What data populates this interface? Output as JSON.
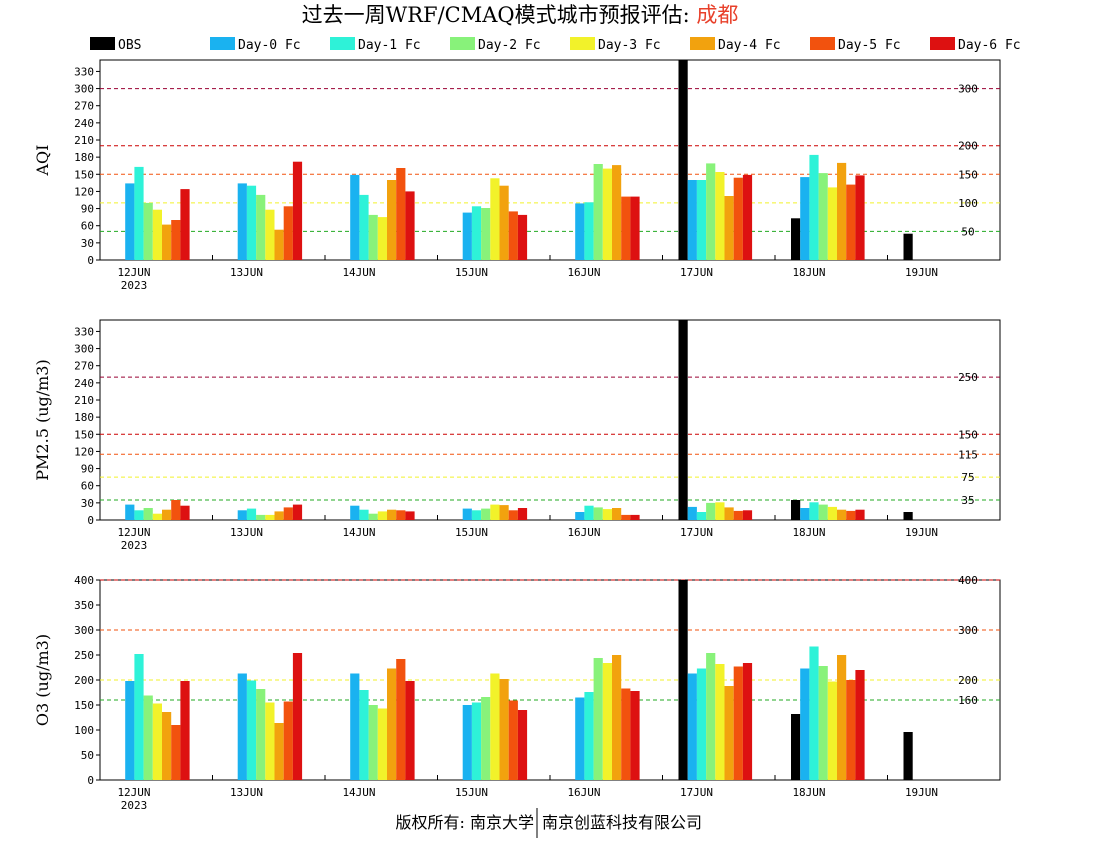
{
  "title": {
    "main": "过去一周WRF/CMAQ模式城市预报评估: ",
    "city": "成都",
    "city_color": "#e8402a"
  },
  "footer": {
    "left": "版权所有: 南京大学",
    "right": "南京创蓝科技有限公司"
  },
  "legend": [
    {
      "label": "OBS",
      "color": "#000000"
    },
    {
      "label": "Day-0 Fc",
      "color": "#1ab2f0"
    },
    {
      "label": "Day-1 Fc",
      "color": "#2ef2d8"
    },
    {
      "label": "Day-2 Fc",
      "color": "#88f27a"
    },
    {
      "label": "Day-3 Fc",
      "color": "#f2f22a"
    },
    {
      "label": "Day-4 Fc",
      "color": "#f2a20e"
    },
    {
      "label": "Day-5 Fc",
      "color": "#f2520e"
    },
    {
      "label": "Day-6 Fc",
      "color": "#dd1111"
    }
  ],
  "chart_data": [
    {
      "type": "bar",
      "ylabel": "AQI",
      "ylim": [
        0,
        350
      ],
      "yticks": [
        0,
        30,
        60,
        90,
        120,
        150,
        180,
        210,
        240,
        270,
        300,
        330
      ],
      "categories": [
        "12JUN",
        "13JUN",
        "14JUN",
        "15JUN",
        "16JUN",
        "17JUN",
        "18JUN",
        "19JUN"
      ],
      "year_label": "2023",
      "ref_lines": [
        {
          "value": 300,
          "label": "300",
          "color": "#990033"
        },
        {
          "value": 200,
          "label": "200",
          "color": "#cc0000"
        },
        {
          "value": 150,
          "label": "150",
          "color": "#f2520e"
        },
        {
          "value": 100,
          "label": "100",
          "color": "#f2f22a"
        },
        {
          "value": 50,
          "label": "50",
          "color": "#22aa22"
        }
      ],
      "series": [
        {
          "name": "OBS",
          "values": [
            null,
            null,
            null,
            null,
            null,
            350,
            73,
            46
          ]
        },
        {
          "name": "Day-0 Fc",
          "values": [
            134,
            134,
            149,
            83,
            99,
            140,
            145,
            null
          ]
        },
        {
          "name": "Day-1 Fc",
          "values": [
            163,
            130,
            114,
            94,
            101,
            140,
            184,
            null
          ]
        },
        {
          "name": "Day-2 Fc",
          "values": [
            100,
            114,
            79,
            91,
            168,
            169,
            152,
            null
          ]
        },
        {
          "name": "Day-3 Fc",
          "values": [
            88,
            88,
            75,
            143,
            160,
            154,
            127,
            null
          ]
        },
        {
          "name": "Day-4 Fc",
          "values": [
            62,
            53,
            140,
            130,
            166,
            112,
            170,
            null
          ]
        },
        {
          "name": "Day-5 Fc",
          "values": [
            70,
            94,
            161,
            85,
            111,
            144,
            132,
            null
          ]
        },
        {
          "name": "Day-6 Fc",
          "values": [
            124,
            172,
            120,
            79,
            111,
            149,
            148,
            null
          ]
        }
      ]
    },
    {
      "type": "bar",
      "ylabel": "PM2.5 (ug/m3)",
      "ylim": [
        0,
        350
      ],
      "yticks": [
        0,
        30,
        60,
        90,
        120,
        150,
        180,
        210,
        240,
        270,
        300,
        330
      ],
      "categories": [
        "12JUN",
        "13JUN",
        "14JUN",
        "15JUN",
        "16JUN",
        "17JUN",
        "18JUN",
        "19JUN"
      ],
      "year_label": "2023",
      "ref_lines": [
        {
          "value": 250,
          "label": "250",
          "color": "#990033"
        },
        {
          "value": 150,
          "label": "150",
          "color": "#cc0000"
        },
        {
          "value": 115,
          "label": "115",
          "color": "#f2520e"
        },
        {
          "value": 75,
          "label": "75",
          "color": "#f2f22a"
        },
        {
          "value": 35,
          "label": "35",
          "color": "#22aa22"
        }
      ],
      "series": [
        {
          "name": "OBS",
          "values": [
            null,
            null,
            null,
            null,
            null,
            350,
            35,
            14
          ]
        },
        {
          "name": "Day-0 Fc",
          "values": [
            27,
            17,
            25,
            20,
            14,
            23,
            21,
            null
          ]
        },
        {
          "name": "Day-1 Fc",
          "values": [
            17,
            20,
            18,
            17,
            25,
            14,
            31,
            null
          ]
        },
        {
          "name": "Day-2 Fc",
          "values": [
            21,
            9,
            11,
            20,
            22,
            30,
            27,
            null
          ]
        },
        {
          "name": "Day-3 Fc",
          "values": [
            11,
            9,
            15,
            27,
            19,
            31,
            23,
            null
          ]
        },
        {
          "name": "Day-4 Fc",
          "values": [
            18,
            15,
            18,
            26,
            21,
            22,
            18,
            null
          ]
        },
        {
          "name": "Day-5 Fc",
          "values": [
            35,
            22,
            17,
            17,
            9,
            16,
            16,
            null
          ]
        },
        {
          "name": "Day-6 Fc",
          "values": [
            25,
            27,
            15,
            21,
            9,
            17,
            18,
            null
          ]
        }
      ]
    },
    {
      "type": "bar",
      "ylabel": "O3 (ug/m3)",
      "ylim": [
        0,
        400
      ],
      "yticks": [
        0,
        50,
        100,
        150,
        200,
        250,
        300,
        350,
        400
      ],
      "categories": [
        "12JUN",
        "13JUN",
        "14JUN",
        "15JUN",
        "16JUN",
        "17JUN",
        "18JUN",
        "19JUN"
      ],
      "year_label": "2023",
      "ref_lines": [
        {
          "value": 400,
          "label": "400",
          "color": "#cc0000"
        },
        {
          "value": 300,
          "label": "300",
          "color": "#f2520e"
        },
        {
          "value": 200,
          "label": "200",
          "color": "#f2f22a"
        },
        {
          "value": 160,
          "label": "160",
          "color": "#22aa22"
        }
      ],
      "series": [
        {
          "name": "OBS",
          "values": [
            null,
            null,
            null,
            null,
            null,
            400,
            132,
            96
          ]
        },
        {
          "name": "Day-0 Fc",
          "values": [
            198,
            213,
            213,
            150,
            165,
            213,
            223,
            null
          ]
        },
        {
          "name": "Day-1 Fc",
          "values": [
            252,
            199,
            180,
            155,
            176,
            223,
            267,
            null
          ]
        },
        {
          "name": "Day-2 Fc",
          "values": [
            169,
            182,
            150,
            166,
            244,
            254,
            228,
            null
          ]
        },
        {
          "name": "Day-3 Fc",
          "values": [
            153,
            155,
            143,
            213,
            234,
            232,
            197,
            null
          ]
        },
        {
          "name": "Day-4 Fc",
          "values": [
            136,
            114,
            223,
            202,
            250,
            188,
            250,
            null
          ]
        },
        {
          "name": "Day-5 Fc",
          "values": [
            110,
            157,
            242,
            159,
            183,
            227,
            200,
            null
          ]
        },
        {
          "name": "Day-6 Fc",
          "values": [
            198,
            254,
            198,
            140,
            178,
            234,
            220,
            null
          ]
        }
      ]
    }
  ]
}
